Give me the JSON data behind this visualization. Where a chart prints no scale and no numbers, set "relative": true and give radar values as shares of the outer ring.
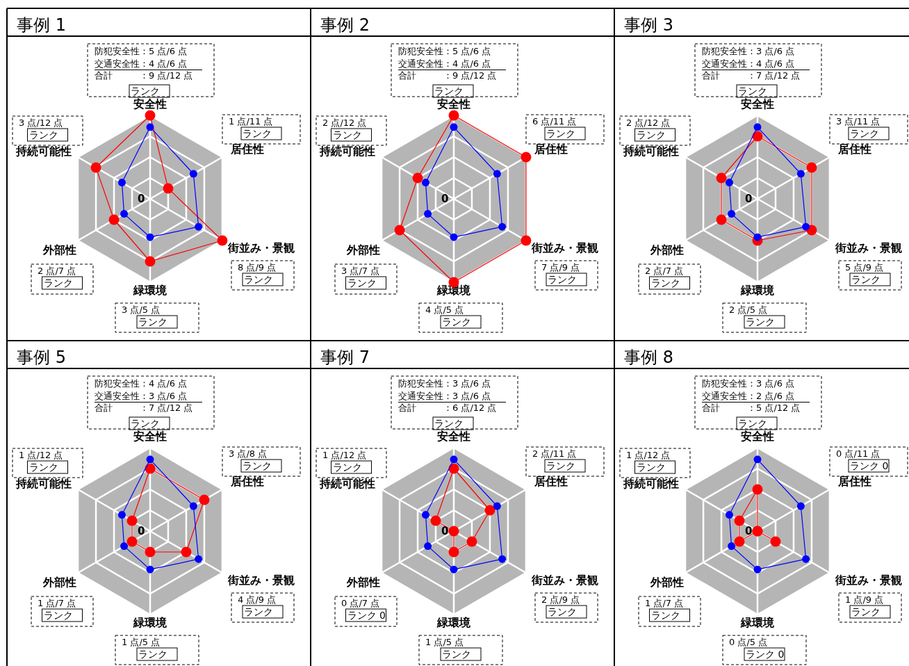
{
  "chart_data": [
    {
      "type": "radar",
      "title": "事例 1",
      "categories": [
        "安全性",
        "居住性",
        "街並み・景観",
        "緑環境",
        "外部性",
        "持続可能性"
      ],
      "relative": true,
      "marker": "circle",
      "series": [
        {
          "color": "#ff0000",
          "values": [
            1,
            0.25,
            1,
            0.75,
            0.5,
            0.75
          ]
        },
        {
          "color": "#0000ff",
          "values": [
            0.86,
            0.6,
            0.67,
            0.46,
            0.36,
            0.39
          ]
        }
      ],
      "annotations": [
        "0",
        "防犯安全性：5 点/6 点",
        "交通安全性：4 点/6 点",
        "合計　　　：9 点/12 点",
        "ランク",
        "1 点/11 点",
        "ランク",
        "8 点/9 点",
        "ランク",
        "3 点/5 点",
        "ランク",
        "2 点/7 点",
        "ランク",
        "3 点/12 点",
        "ランク"
      ]
    },
    {
      "type": "radar",
      "title": "事例 2",
      "categories": [
        "安全性",
        "居住性",
        "街並み・景観",
        "緑環境",
        "外部性",
        "持続可能性"
      ],
      "relative": true,
      "marker": "circle",
      "series": [
        {
          "color": "#ff0000",
          "values": [
            1,
            1,
            1,
            1,
            0.75,
            0.5
          ]
        },
        {
          "color": "#0000ff",
          "values": [
            0.86,
            0.6,
            0.67,
            0.46,
            0.36,
            0.39
          ]
        }
      ],
      "annotations": [
        "0",
        "防犯安全性：5 点/6 点",
        "交通安全性：4 点/6 点",
        "合計　　　：9 点/12 点",
        "ランク",
        "6 点/11 点",
        "ランク",
        "7 点/9 点",
        "ランク",
        "4 点/5 点",
        "ランク",
        "3 点/7 点",
        "ランク",
        "2 点/12 点",
        "ランク"
      ]
    },
    {
      "type": "radar",
      "title": "事例 3",
      "categories": [
        "安全性",
        "居住性",
        "街並み・景観",
        "緑環境",
        "外部性",
        "持続可能性"
      ],
      "relative": true,
      "marker": "circle",
      "series": [
        {
          "color": "#ff0000",
          "values": [
            0.75,
            0.75,
            0.75,
            0.5,
            0.5,
            0.5
          ]
        },
        {
          "color": "#0000ff",
          "values": [
            0.86,
            0.6,
            0.67,
            0.46,
            0.36,
            0.39
          ]
        }
      ],
      "annotations": [
        "0",
        "防犯安全性：3 点/6 点",
        "交通安全性：4 点/6 点",
        "合計　　　：7 点/12 点",
        "ランク",
        "3 点/11 点",
        "ランク",
        "5 点/9 点",
        "ランク",
        "2 点/5 点",
        "ランク",
        "2 点/7 点",
        "ランク",
        "2 点/12 点",
        "ランク"
      ]
    },
    {
      "type": "radar",
      "title": "事例 5",
      "categories": [
        "安全性",
        "居住性",
        "街並み・景観",
        "緑環境",
        "外部性",
        "持続可能性"
      ],
      "relative": true,
      "marker": "circle",
      "series": [
        {
          "color": "#ff0000",
          "values": [
            0.75,
            0.75,
            0.5,
            0.25,
            0.25,
            0.25
          ]
        },
        {
          "color": "#0000ff",
          "values": [
            0.86,
            0.6,
            0.67,
            0.46,
            0.36,
            0.39
          ]
        }
      ],
      "annotations": [
        "0",
        "防犯安全性：4 点/6 点",
        "交通安全性：3 点/6 点",
        "合計　　　：7 点/12 点",
        "ランク",
        "3 点/8 点",
        "ランク",
        "4 点/9 点",
        "ランク",
        "1 点/5 点",
        "ランク",
        "1 点/7 点",
        "ランク",
        "1 点/12 点",
        "ランク"
      ]
    },
    {
      "type": "radar",
      "title": "事例 7",
      "categories": [
        "安全性",
        "居住性",
        "街並み・景観",
        "緑環境",
        "外部性",
        "持続可能性"
      ],
      "relative": true,
      "marker": "circle",
      "series": [
        {
          "color": "#ff0000",
          "values": [
            0.75,
            0.5,
            0.25,
            0.25,
            0,
            0.25
          ]
        },
        {
          "color": "#0000ff",
          "values": [
            0.86,
            0.6,
            0.67,
            0.46,
            0.36,
            0.39
          ]
        }
      ],
      "annotations": [
        "0",
        "防犯安全性：3 点/6 点",
        "交通安全性：3 点/6 点",
        "合計　　　：6 点/12 点",
        "ランク",
        "2 点/11 点",
        "ランク",
        "2 点/9 点",
        "ランク",
        "1 点/5 点",
        "ランク",
        "0 点/7 点",
        "ランク 0",
        "1 点/12 点",
        "ランク"
      ]
    },
    {
      "type": "radar",
      "title": "事例 8",
      "categories": [
        "安全性",
        "居住性",
        "街並み・景観",
        "緑環境",
        "外部性",
        "持続可能性"
      ],
      "relative": true,
      "marker": "circle",
      "series": [
        {
          "color": "#ff0000",
          "values": [
            0.5,
            0,
            0.25,
            0,
            0.25,
            0.25
          ]
        },
        {
          "color": "#0000ff",
          "values": [
            0.86,
            0.6,
            0.67,
            0.46,
            0.36,
            0.39
          ]
        }
      ],
      "annotations": [
        "0",
        "防犯安全性：3 点/6 点",
        "交通安全性：2 点/6 点",
        "合計　　　：5 点/12 点",
        "ランク",
        "0 点/11 点",
        "ランク 0",
        "1 点/9 点",
        "ランク",
        "0 点/5 点",
        "ランク 0",
        "1 点/7 点",
        "ランク",
        "1 点/12 点",
        "ランク"
      ]
    }
  ]
}
